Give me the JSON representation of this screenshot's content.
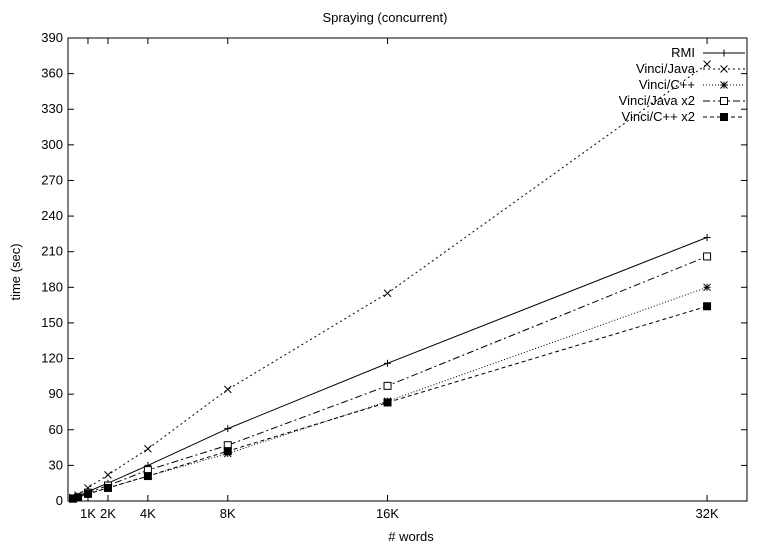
{
  "chart_data": {
    "type": "line",
    "title": "Spraying (concurrent)",
    "xlabel": "# words",
    "ylabel": "time (sec)",
    "xlim": [
      0,
      34000
    ],
    "ylim": [
      0,
      390
    ],
    "xticks": [
      {
        "value": 1000,
        "label": "1K"
      },
      {
        "value": 2000,
        "label": "2K"
      },
      {
        "value": 4000,
        "label": "4K"
      },
      {
        "value": 8000,
        "label": "8K"
      },
      {
        "value": 16000,
        "label": "16K"
      },
      {
        "value": 32000,
        "label": "32K"
      }
    ],
    "yticks": [
      0,
      30,
      60,
      90,
      120,
      150,
      180,
      210,
      240,
      270,
      300,
      330,
      360,
      390
    ],
    "legend_position": "top-right",
    "grid": false,
    "x": [
      250,
      500,
      1000,
      2000,
      4000,
      8000,
      16000,
      32000
    ],
    "series": [
      {
        "name": "RMI",
        "marker": "plus",
        "dash": "",
        "values": [
          2,
          4,
          8,
          15,
          30,
          61,
          116,
          222
        ]
      },
      {
        "name": "Vinci/Java",
        "marker": "cross",
        "dash": "2,3",
        "values": [
          3,
          5,
          11,
          22,
          44,
          94,
          175,
          368
        ]
      },
      {
        "name": "Vinci/C++",
        "marker": "star",
        "dash": "1,2",
        "values": [
          2,
          3,
          6,
          11,
          21,
          40,
          84,
          180
        ]
      },
      {
        "name": "Vinci/Java x2",
        "marker": "open-square",
        "dash": "7,3,2,3",
        "values": [
          2,
          3,
          7,
          13,
          26,
          47,
          97,
          206
        ]
      },
      {
        "name": "Vinci/C++ x2",
        "marker": "filled-square",
        "dash": "4,3",
        "values": [
          2,
          3,
          6,
          11,
          21,
          42,
          83,
          164
        ]
      }
    ]
  }
}
